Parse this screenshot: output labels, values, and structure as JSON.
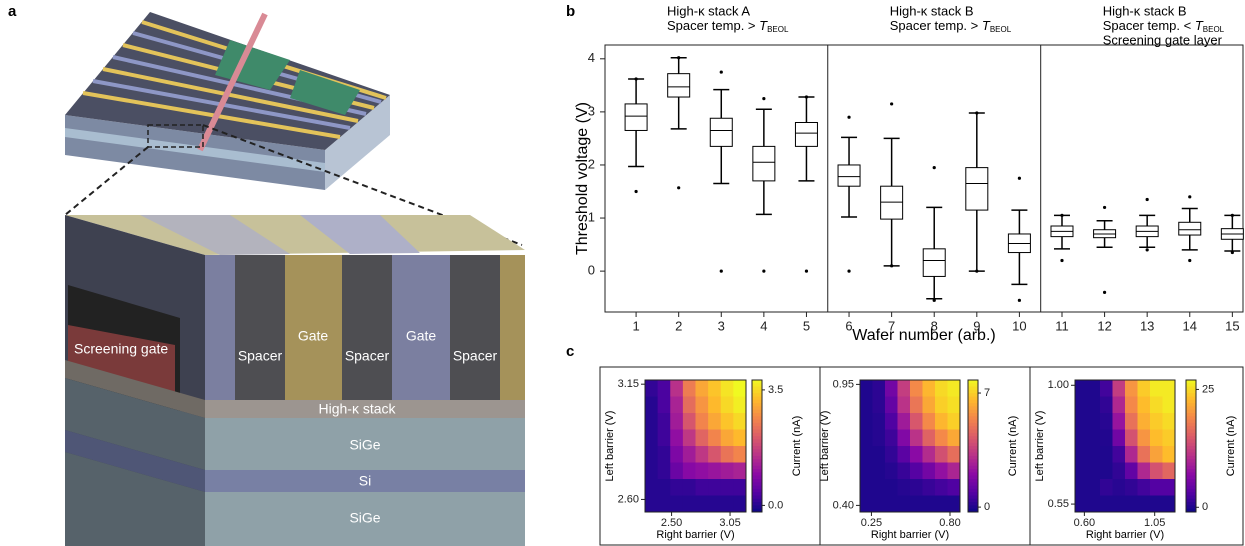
{
  "panel_labels": [
    "a",
    "b",
    "c"
  ],
  "diagram": {
    "screening_gate": "Screening gate",
    "front_labels": [
      "Spacer",
      "Gate",
      "Spacer",
      "Gate",
      "Spacer"
    ],
    "layers": [
      "High-κ stack",
      "SiGe",
      "Si",
      "SiGe"
    ]
  },
  "chart_data": [
    {
      "type": "box",
      "x": [
        1,
        2,
        3,
        4,
        5,
        6,
        7,
        8,
        9,
        10,
        11,
        12,
        13,
        14,
        15
      ],
      "xticks": [
        1,
        2,
        3,
        4,
        5,
        6,
        7,
        8,
        9,
        10,
        11,
        12,
        13,
        14,
        15
      ],
      "xlim": [
        0.27,
        15.25
      ],
      "ylim": [
        -0.77,
        4.26
      ],
      "yticks": [
        0,
        1,
        2,
        3,
        4
      ],
      "xlabel": "Wafer number (arb.)",
      "ylabel": "Threshold voltage (V)",
      "color": "#000000",
      "dividers": [
        5.5,
        10.5
      ],
      "annotations": [
        {
          "title": "High-κ stack A",
          "condition": "Spacer temp. > ",
          "symbol": "T",
          "subscript": "BEOL"
        },
        {
          "title": "High-κ stack B",
          "condition": "Spacer temp. > ",
          "symbol": "T",
          "subscript": "BEOL"
        },
        {
          "title": "High-κ stack B",
          "condition": "Spacer temp. < ",
          "symbol": "T",
          "subscript": "BEOL",
          "extra": "Screening gate layer"
        }
      ],
      "min": [
        1.5,
        1.57,
        0.0,
        0.0,
        0.0,
        0.0,
        0.1,
        -0.55,
        0.0,
        -0.55,
        0.2,
        -0.4,
        0.4,
        0.2,
        0.35
      ],
      "whisker_low": [
        1.97,
        2.68,
        1.65,
        1.07,
        1.7,
        1.02,
        0.1,
        -0.52,
        0.0,
        -0.25,
        0.42,
        0.45,
        0.45,
        0.4,
        0.38
      ],
      "q1": [
        2.65,
        3.28,
        2.35,
        1.7,
        2.35,
        1.6,
        0.98,
        -0.1,
        1.15,
        0.35,
        0.65,
        0.63,
        0.65,
        0.68,
        0.6
      ],
      "median": [
        2.92,
        3.47,
        2.65,
        2.05,
        2.6,
        1.78,
        1.3,
        0.2,
        1.65,
        0.52,
        0.75,
        0.7,
        0.75,
        0.78,
        0.7
      ],
      "q3": [
        3.15,
        3.72,
        2.88,
        2.35,
        2.8,
        2.0,
        1.6,
        0.42,
        1.95,
        0.7,
        0.85,
        0.78,
        0.85,
        0.92,
        0.8
      ],
      "whisker_high": [
        3.62,
        4.02,
        3.42,
        3.05,
        3.28,
        2.52,
        2.5,
        1.2,
        2.98,
        1.15,
        1.05,
        0.95,
        1.05,
        1.18,
        1.05
      ],
      "max": [
        3.62,
        4.02,
        3.75,
        3.25,
        3.28,
        2.9,
        3.15,
        1.95,
        2.98,
        1.75,
        1.05,
        1.2,
        1.35,
        1.4,
        1.05
      ]
    },
    {
      "type": "heatmap",
      "xlabel": "Right barrier (V)",
      "ylabel": "Left barrier (V)",
      "colorbar_label": "Current (nA)",
      "colormap": "plasma",
      "xlim": [
        2.25,
        3.2
      ],
      "ylim": [
        2.54,
        3.17
      ],
      "xticks": [
        {
          "value": 2.5,
          "label": "2.50"
        },
        {
          "value": 3.05,
          "label": "3.05"
        }
      ],
      "yticks": [
        {
          "value": 2.6,
          "label": "2.60"
        },
        {
          "value": 3.15,
          "label": "3.15"
        }
      ],
      "clim": [
        -0.2,
        3.8
      ],
      "cticks": [
        {
          "value": 0,
          "label": "0.0"
        },
        3.5
      ],
      "z": [
        [
          0.1,
          0.3,
          1.5,
          2.5,
          3.0,
          3.3,
          3.6,
          3.8
        ],
        [
          0,
          0.3,
          1.3,
          2.3,
          2.8,
          3.2,
          3.5,
          3.7
        ],
        [
          0,
          0.2,
          1.2,
          2.0,
          2.6,
          3.0,
          3.3,
          3.5
        ],
        [
          0,
          0.2,
          1.0,
          1.6,
          2.2,
          2.6,
          3.0,
          3.2
        ],
        [
          0,
          0.1,
          0.8,
          1.2,
          1.6,
          2.0,
          2.4,
          2.6
        ],
        [
          0,
          0.1,
          0.6,
          0.9,
          1.0,
          1.1,
          1.2,
          1.3
        ],
        [
          0,
          0,
          0.1,
          0.1,
          0.2,
          0.2,
          0.2,
          0.2
        ],
        [
          0,
          0,
          0,
          0,
          0,
          0,
          0,
          0
        ]
      ]
    },
    {
      "type": "heatmap",
      "xlabel": "Right barrier (V)",
      "ylabel": "Left barrier (V)",
      "colorbar_label": "Current (nA)",
      "colormap": "plasma",
      "xlim": [
        0.17,
        0.87
      ],
      "ylim": [
        0.37,
        0.97
      ],
      "xticks": [
        0.25,
        {
          "value": 0.8,
          "label": "0.80"
        }
      ],
      "yticks": [
        {
          "value": 0.4,
          "label": "0.40"
        },
        0.95
      ],
      "clim": [
        -0.3,
        7.8
      ],
      "cticks": [
        0,
        7
      ],
      "z": [
        [
          0,
          0.2,
          1.5,
          3.5,
          5.5,
          6.5,
          7.2,
          7.5
        ],
        [
          0,
          0.2,
          1.2,
          3.2,
          5.0,
          6.2,
          7.0,
          7.3
        ],
        [
          0,
          0.1,
          0.8,
          2.5,
          4.2,
          5.5,
          6.5,
          7.0
        ],
        [
          0,
          0.1,
          0.5,
          1.8,
          3.2,
          4.5,
          5.5,
          6.2
        ],
        [
          0,
          0,
          0.3,
          1.0,
          2.0,
          3.0,
          4.0,
          4.8
        ],
        [
          0,
          0,
          0.1,
          0.4,
          0.9,
          1.5,
          2.2,
          2.8
        ],
        [
          0,
          0,
          0,
          0.1,
          0.2,
          0.4,
          0.6,
          0.8
        ],
        [
          0,
          0,
          0,
          0,
          0,
          0,
          0,
          0
        ]
      ]
    },
    {
      "type": "heatmap",
      "xlabel": "Right barrier (V)",
      "ylabel": "Left barrier (V)",
      "colorbar_label": "Current (nA)",
      "colormap": "plasma",
      "xlim": [
        0.54,
        1.18
      ],
      "ylim": [
        0.52,
        1.02
      ],
      "xticks": [
        {
          "value": 0.6,
          "label": "0.60"
        },
        1.05
      ],
      "yticks": [
        0.55,
        {
          "value": 1.0,
          "label": "1.00"
        }
      ],
      "clim": [
        -1,
        27
      ],
      "cticks": [
        0,
        25
      ],
      "z": [
        [
          0,
          0,
          2,
          12,
          20,
          24,
          26,
          26
        ],
        [
          0,
          0,
          1,
          10,
          19,
          23,
          25,
          26
        ],
        [
          0,
          0,
          0.5,
          8,
          17,
          22,
          24,
          25
        ],
        [
          0,
          0,
          0.2,
          5,
          14,
          20,
          23,
          24
        ],
        [
          0,
          0,
          0,
          2,
          10,
          17,
          21,
          23
        ],
        [
          0,
          0,
          0,
          1,
          4,
          10,
          14,
          16
        ],
        [
          0,
          0,
          1,
          0.5,
          1,
          2,
          3,
          3
        ],
        [
          0,
          0,
          0,
          0,
          0,
          0,
          0,
          0
        ]
      ]
    }
  ]
}
